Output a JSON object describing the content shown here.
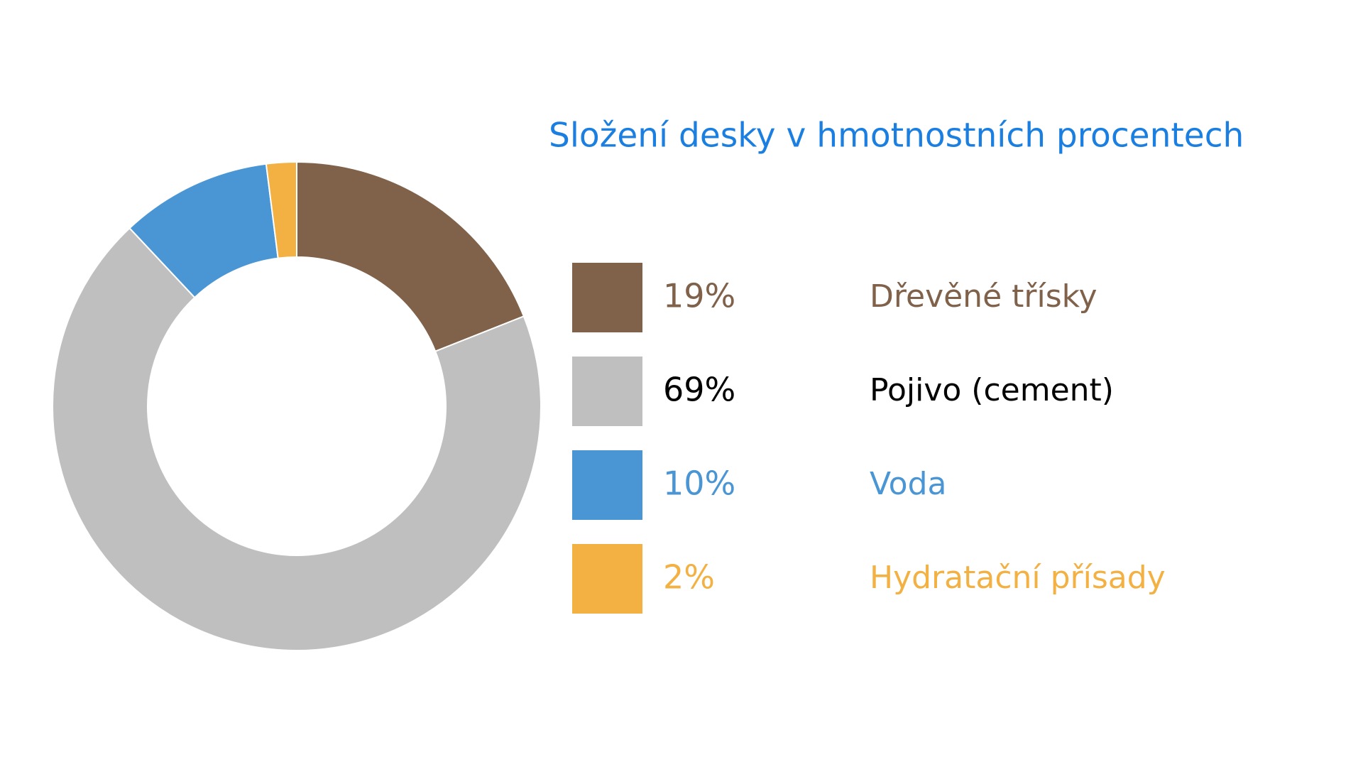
{
  "chart_data": {
    "type": "pie",
    "title": "Složení desky v hmotnostních procentech",
    "categories": [
      "Dřevěné třísky",
      "Pojivo (cement)",
      "Voda",
      "Hydratační přísady"
    ],
    "values": [
      19,
      69,
      10,
      2
    ],
    "value_labels": [
      "19%",
      "69%",
      "10%",
      "2%"
    ],
    "colors": [
      "#80614a",
      "#bfbfbf",
      "#4a96d5",
      "#f2b142"
    ],
    "label_colors": [
      "#80614a",
      "#000000",
      "#4a96d5",
      "#f2b142"
    ]
  }
}
